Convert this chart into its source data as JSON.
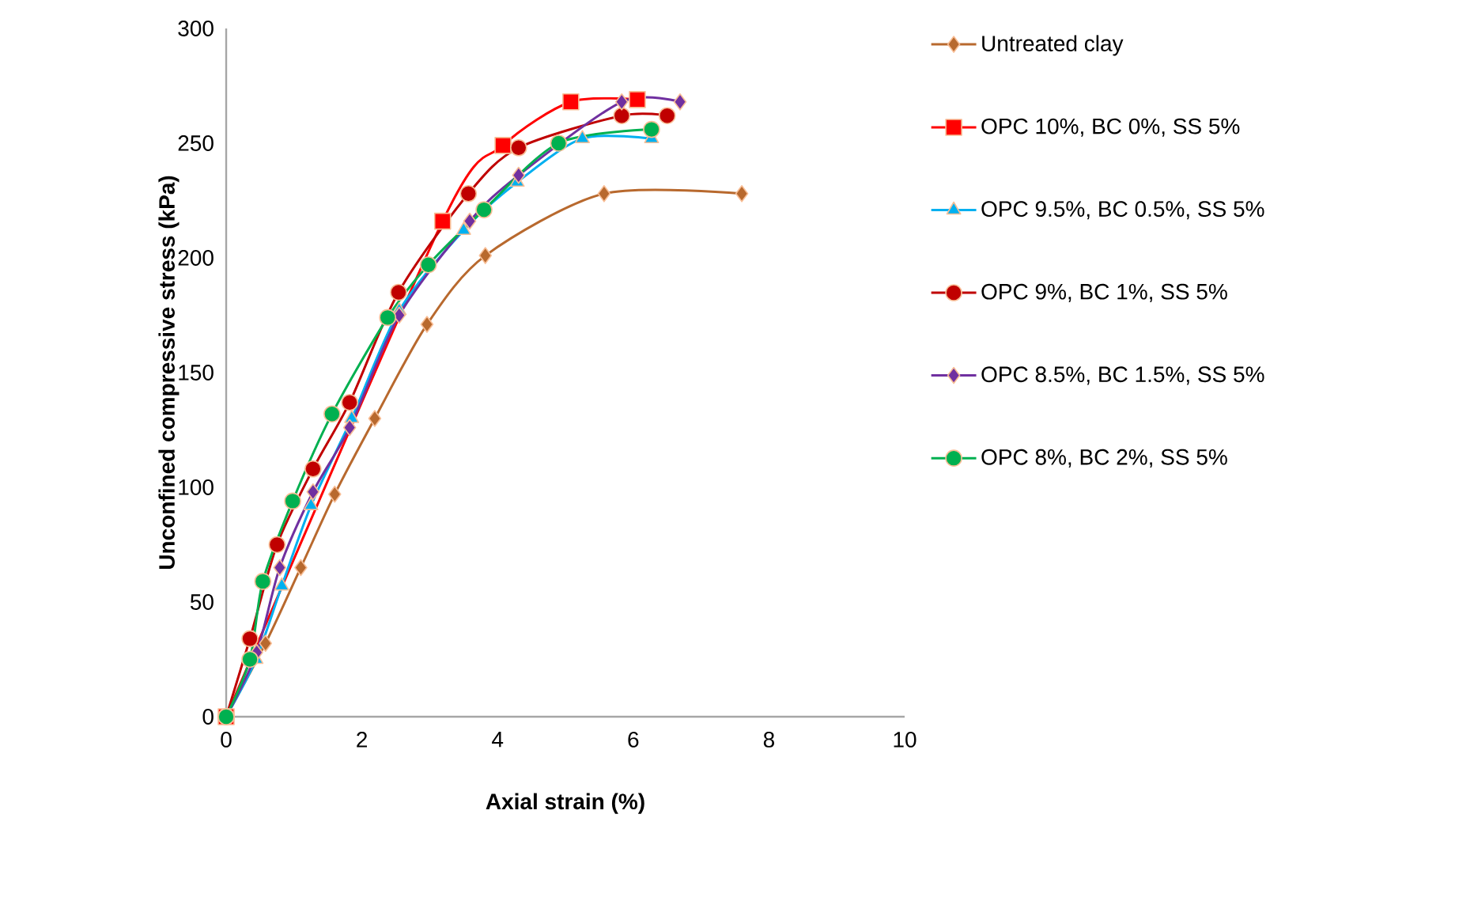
{
  "chart_data": {
    "type": "line",
    "xlabel": "Axial strain (%)",
    "ylabel": "Unconfined compressive stress (kPa)",
    "xlim": [
      0,
      10
    ],
    "ylim": [
      0,
      300
    ],
    "xticks": [
      0,
      2,
      4,
      6,
      8,
      10
    ],
    "yticks": [
      0,
      50,
      100,
      150,
      200,
      250,
      300
    ],
    "legend": "right",
    "grid": false,
    "series": [
      {
        "name": "Untreated clay",
        "color": "#b8692e",
        "marker": "diamond",
        "x": [
          0,
          0.58,
          1.1,
          1.6,
          2.19,
          2.96,
          3.82,
          5.57,
          7.6
        ],
        "values": [
          0,
          32,
          65,
          97,
          130,
          171,
          201,
          228,
          228
        ]
      },
      {
        "name": "OPC 10%, BC 0%, SS 5%",
        "color": "#ff0000",
        "marker": "square",
        "x": [
          0,
          0.35,
          0.75,
          1.3,
          1.82,
          2.5,
          3.19,
          4.08,
          5.08,
          6.06
        ],
        "values": [
          0,
          null,
          null,
          null,
          null,
          null,
          216,
          249,
          268,
          269
        ]
      },
      {
        "name": "OPC 9.5%, BC 0.5%, SS 5%",
        "color": "#00b0f0",
        "marker": "triangle",
        "x": [
          0,
          0.44,
          0.82,
          1.25,
          1.85,
          2.55,
          3.5,
          4.29,
          5.25,
          6.27
        ],
        "values": [
          0,
          25,
          57,
          92,
          130,
          177,
          212,
          233,
          252,
          252
        ]
      },
      {
        "name": "OPC 9%, BC 1%, SS 5%",
        "color": "#c00000",
        "marker": "circle",
        "x": [
          0,
          0.35,
          0.75,
          1.28,
          1.82,
          2.54,
          3.57,
          4.31,
          5.83,
          6.5
        ],
        "values": [
          0,
          34,
          75,
          108,
          137,
          185,
          228,
          248,
          262,
          262
        ]
      },
      {
        "name": "OPC 8.5%, BC 1.5%, SS 5%",
        "color": "#7030a0",
        "marker": "diamond",
        "x": [
          0,
          0.45,
          0.79,
          1.28,
          1.82,
          2.55,
          3.59,
          4.31,
          5.83,
          6.69
        ],
        "values": [
          0,
          28,
          65,
          98,
          126,
          175,
          216,
          236,
          268,
          268
        ]
      },
      {
        "name": "OPC 8%, BC 2%, SS 5%",
        "color": "#00b050",
        "marker": "circle",
        "x": [
          0,
          0.35,
          0.54,
          0.98,
          1.56,
          2.38,
          2.98,
          3.8,
          4.9,
          6.27
        ],
        "values": [
          0,
          25,
          59,
          94,
          132,
          174,
          197,
          221,
          250,
          256
        ]
      }
    ]
  }
}
